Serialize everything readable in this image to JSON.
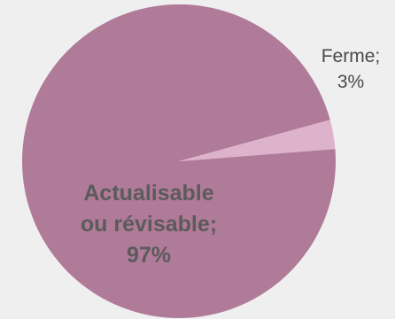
{
  "chart_data": {
    "type": "pie",
    "title": "",
    "legend": "none",
    "slices": [
      {
        "label_lines": [
          "Actualisable",
          "ou révisable;",
          "97%"
        ],
        "value": 97,
        "color": "#b07a99",
        "label_position": "inside"
      },
      {
        "label_lines": [
          "Ferme;",
          "3%"
        ],
        "value": 3,
        "color": "#ddb2cb",
        "label_position": "outside"
      }
    ]
  }
}
